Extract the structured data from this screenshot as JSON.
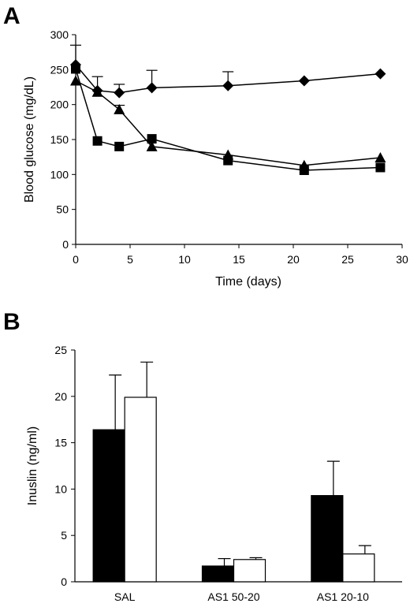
{
  "panels": {
    "a": {
      "letter": "A"
    },
    "b": {
      "letter": "B"
    }
  },
  "chart_data": [
    {
      "type": "line",
      "xlabel": "Time (days)",
      "ylabel": "Blood glucose (mg/dL)",
      "xlim": [
        0,
        30
      ],
      "ylim": [
        0,
        300
      ],
      "xticks": [
        0,
        5,
        10,
        15,
        20,
        25,
        30
      ],
      "yticks": [
        0,
        50,
        100,
        150,
        200,
        250,
        300
      ],
      "grid": false,
      "legend": "none",
      "series": [
        {
          "marker": "diamond",
          "x": [
            0,
            2,
            4,
            7,
            14,
            21,
            28
          ],
          "y": [
            257,
            220,
            217,
            224,
            227,
            234,
            244
          ],
          "err": [
            28,
            20,
            12,
            25,
            20,
            0,
            0
          ]
        },
        {
          "marker": "triangle",
          "x": [
            0,
            2,
            4,
            7,
            14,
            21,
            28
          ],
          "y": [
            234,
            218,
            193,
            140,
            128,
            113,
            124
          ],
          "err": [
            0,
            0,
            6,
            0,
            0,
            0,
            0
          ]
        },
        {
          "marker": "square",
          "x": [
            0,
            2,
            4,
            7,
            14,
            21,
            28
          ],
          "y": [
            251,
            148,
            140,
            151,
            120,
            106,
            110
          ],
          "err": [
            0,
            0,
            0,
            0,
            0,
            0,
            0
          ]
        }
      ]
    },
    {
      "type": "bar",
      "ylabel": "Inuslin (ng/ml)",
      "categories": [
        "SAL",
        "AS1 50-20",
        "AS1 20-10"
      ],
      "ylim": [
        0,
        25
      ],
      "yticks": [
        0,
        5,
        10,
        15,
        20,
        25
      ],
      "grid": false,
      "legend": "none",
      "series": [
        {
          "fill": "#000000",
          "values": [
            16.4,
            1.7,
            9.3
          ],
          "err": [
            5.9,
            0.8,
            3.7
          ]
        },
        {
          "fill": "#ffffff",
          "values": [
            19.9,
            2.4,
            3.0
          ],
          "err": [
            3.8,
            0.2,
            0.9
          ]
        }
      ]
    }
  ]
}
